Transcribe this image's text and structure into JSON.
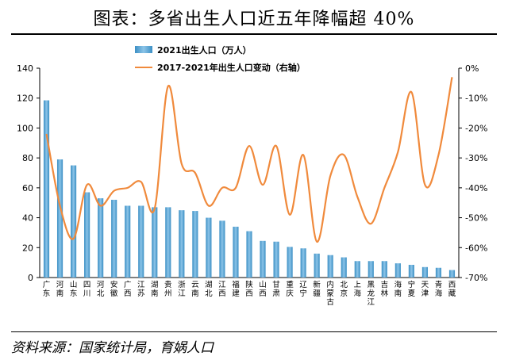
{
  "title": "图表：多省出生人口近五年降幅超 40%",
  "source": "资料来源：国家统计局，育娲人口",
  "colors": {
    "bar": "#3b8fc4",
    "bar_light": "#8cc4e8",
    "line": "#f08a3c",
    "axis": "#000000"
  },
  "chart_data": {
    "type": "bar+line",
    "categories": [
      "广东",
      "河南",
      "山东",
      "四川",
      "河北",
      "安徽",
      "广西",
      "江苏",
      "湖南",
      "贵州",
      "浙江",
      "云南",
      "湖北",
      "江西",
      "福建",
      "陕西",
      "山西",
      "甘肃",
      "重庆",
      "辽宁",
      "新疆",
      "内蒙古",
      "北京",
      "上海",
      "黑龙江",
      "吉林",
      "海南",
      "宁夏",
      "天津",
      "青海",
      "西藏"
    ],
    "series": [
      {
        "name": "2021出生人口（万人）",
        "axis": "left",
        "kind": "bar",
        "values": [
          118.5,
          79,
          75,
          57,
          53,
          52,
          48,
          48,
          47,
          47,
          45,
          44.5,
          40,
          38,
          34,
          31,
          24.5,
          24,
          20.5,
          19.5,
          16,
          15,
          13.5,
          11,
          11,
          11,
          9.5,
          8.5,
          7,
          6.5,
          5
        ]
      },
      {
        "name": "2017-2021年出生人口变动（右轴）",
        "axis": "right",
        "kind": "line",
        "values": [
          -22,
          -46,
          -57,
          -39,
          -46,
          -41,
          -40,
          -38,
          -47,
          -6,
          -32,
          -35,
          -46,
          -40,
          -40,
          -26,
          -39,
          -26,
          -49,
          -29,
          -58,
          -36,
          -29,
          -43,
          -52,
          -40,
          -28,
          -8,
          -39,
          -29,
          -3
        ]
      }
    ],
    "left_axis": {
      "ylim": [
        0,
        140
      ],
      "ticks": [
        "0",
        "20",
        "40",
        "60",
        "80",
        "100",
        "120",
        "140"
      ]
    },
    "right_axis": {
      "ylim": [
        -70,
        0
      ],
      "ticks": [
        "-70%",
        "-60%",
        "-50%",
        "-40%",
        "-30%",
        "-20%",
        "-10%",
        "0%"
      ]
    },
    "legend": {
      "placement": "top-center"
    }
  }
}
